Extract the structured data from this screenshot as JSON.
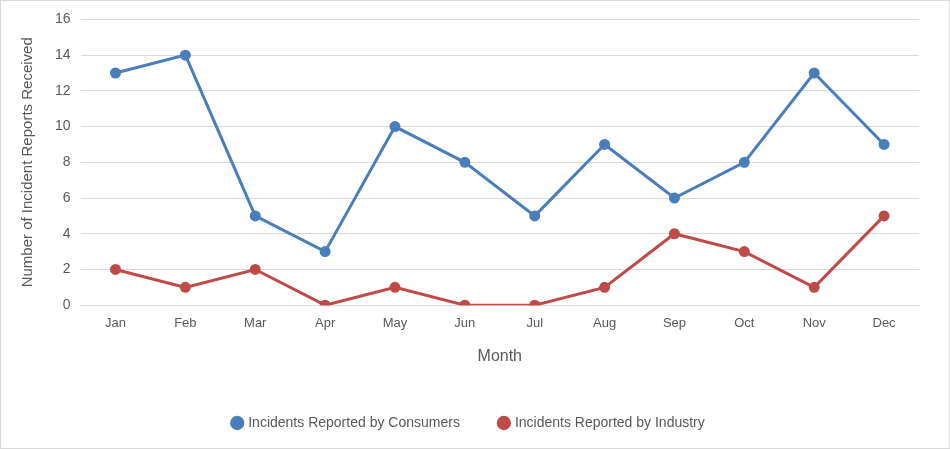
{
  "chart_data": {
    "type": "line",
    "x_label": "Month",
    "y_label": "Number of Incident Reports Received",
    "categories": [
      "Jan",
      "Feb",
      "Mar",
      "Apr",
      "May",
      "Jun",
      "Jul",
      "Aug",
      "Sep",
      "Oct",
      "Nov",
      "Dec"
    ],
    "series": [
      {
        "name": "Incidents Reported by Consumers",
        "color": "#4a7ebb",
        "marker": "circle",
        "line_style": "solid",
        "values": [
          13,
          14,
          5,
          3,
          10,
          8,
          5,
          9,
          6,
          8,
          13,
          9
        ]
      },
      {
        "name": "Incidents Reported by Industry",
        "color": "#be4b48",
        "marker": "circle",
        "line_style": "solid",
        "values": [
          2,
          1,
          2,
          0,
          1,
          0,
          0,
          1,
          4,
          3,
          1,
          5
        ]
      }
    ],
    "ylim": [
      0,
      16
    ],
    "yticks": [
      0,
      2,
      4,
      6,
      8,
      10,
      12,
      14,
      16
    ],
    "grid": true,
    "legend": "bottom"
  }
}
